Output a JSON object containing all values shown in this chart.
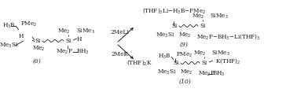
{
  "background_color": "#ffffff",
  "fig_width": 3.78,
  "fig_height": 1.22,
  "dpi": 100,
  "line_color": "#1a1a1a",
  "font_size": 5.2,
  "elements": {
    "compound6_label": "(6)",
    "compound9_label": "(9)",
    "compound10_label": "(10)",
    "reagent1": "2MeLi",
    "reagent2": "2MeK"
  }
}
